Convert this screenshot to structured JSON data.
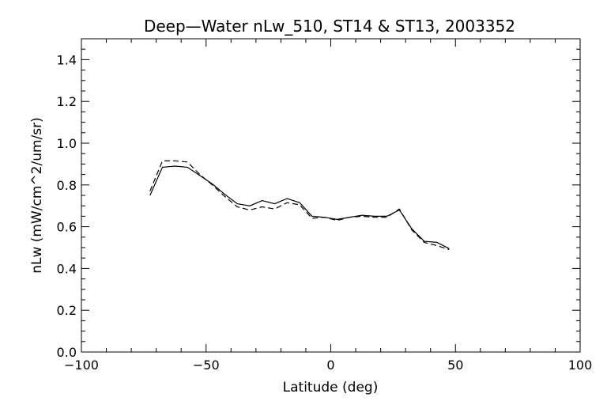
{
  "chart_data": {
    "type": "line",
    "title": "Deep—Water nLw_510, ST14 & ST13, 2003352",
    "xlabel": "Latitude (deg)",
    "ylabel": "nLw (mW/cm^2/um/sr)",
    "xlim": [
      -100,
      100
    ],
    "ylim": [
      0.0,
      1.5
    ],
    "xticks": [
      -100,
      -50,
      0,
      50,
      100
    ],
    "xtick_labels": [
      "−100",
      "−50",
      "0",
      "50",
      "100"
    ],
    "yticks": [
      0.0,
      0.2,
      0.4,
      0.6,
      0.8,
      1.0,
      1.2,
      1.4
    ],
    "ytick_labels": [
      "0.0",
      "0.2",
      "0.4",
      "0.6",
      "0.8",
      "1.0",
      "1.2",
      "1.4"
    ],
    "grid": false,
    "legend": "none",
    "series": [
      {
        "style": "solid",
        "color": "#000000",
        "x": [
          -72.5,
          -67.5,
          -62.5,
          -57.5,
          -52.5,
          -47.5,
          -42.5,
          -37.5,
          -32.5,
          -27.5,
          -22.5,
          -17.5,
          -12.5,
          -7.5,
          -2.5,
          2.5,
          7.5,
          12.5,
          17.5,
          22.5,
          27.5,
          32.5,
          37.5,
          42.5,
          47.5
        ],
        "values": [
          0.75,
          0.885,
          0.89,
          0.885,
          0.845,
          0.805,
          0.755,
          0.71,
          0.7,
          0.725,
          0.71,
          0.735,
          0.715,
          0.65,
          0.645,
          0.635,
          0.645,
          0.655,
          0.65,
          0.65,
          0.68,
          0.59,
          0.53,
          0.525,
          0.495
        ]
      },
      {
        "style": "dashed",
        "color": "#000000",
        "x": [
          -72.5,
          -67.5,
          -62.5,
          -57.5,
          -52.5,
          -47.5,
          -42.5,
          -37.5,
          -32.5,
          -27.5,
          -22.5,
          -17.5,
          -12.5,
          -7.5,
          -2.5,
          2.5,
          7.5,
          12.5,
          17.5,
          22.5,
          27.5,
          32.5,
          37.5,
          42.5,
          47.5
        ],
        "values": [
          0.77,
          0.915,
          0.915,
          0.91,
          0.85,
          0.8,
          0.745,
          0.695,
          0.68,
          0.695,
          0.685,
          0.715,
          0.705,
          0.64,
          0.645,
          0.63,
          0.645,
          0.65,
          0.645,
          0.645,
          0.685,
          0.585,
          0.525,
          0.51,
          0.49
        ]
      }
    ]
  }
}
